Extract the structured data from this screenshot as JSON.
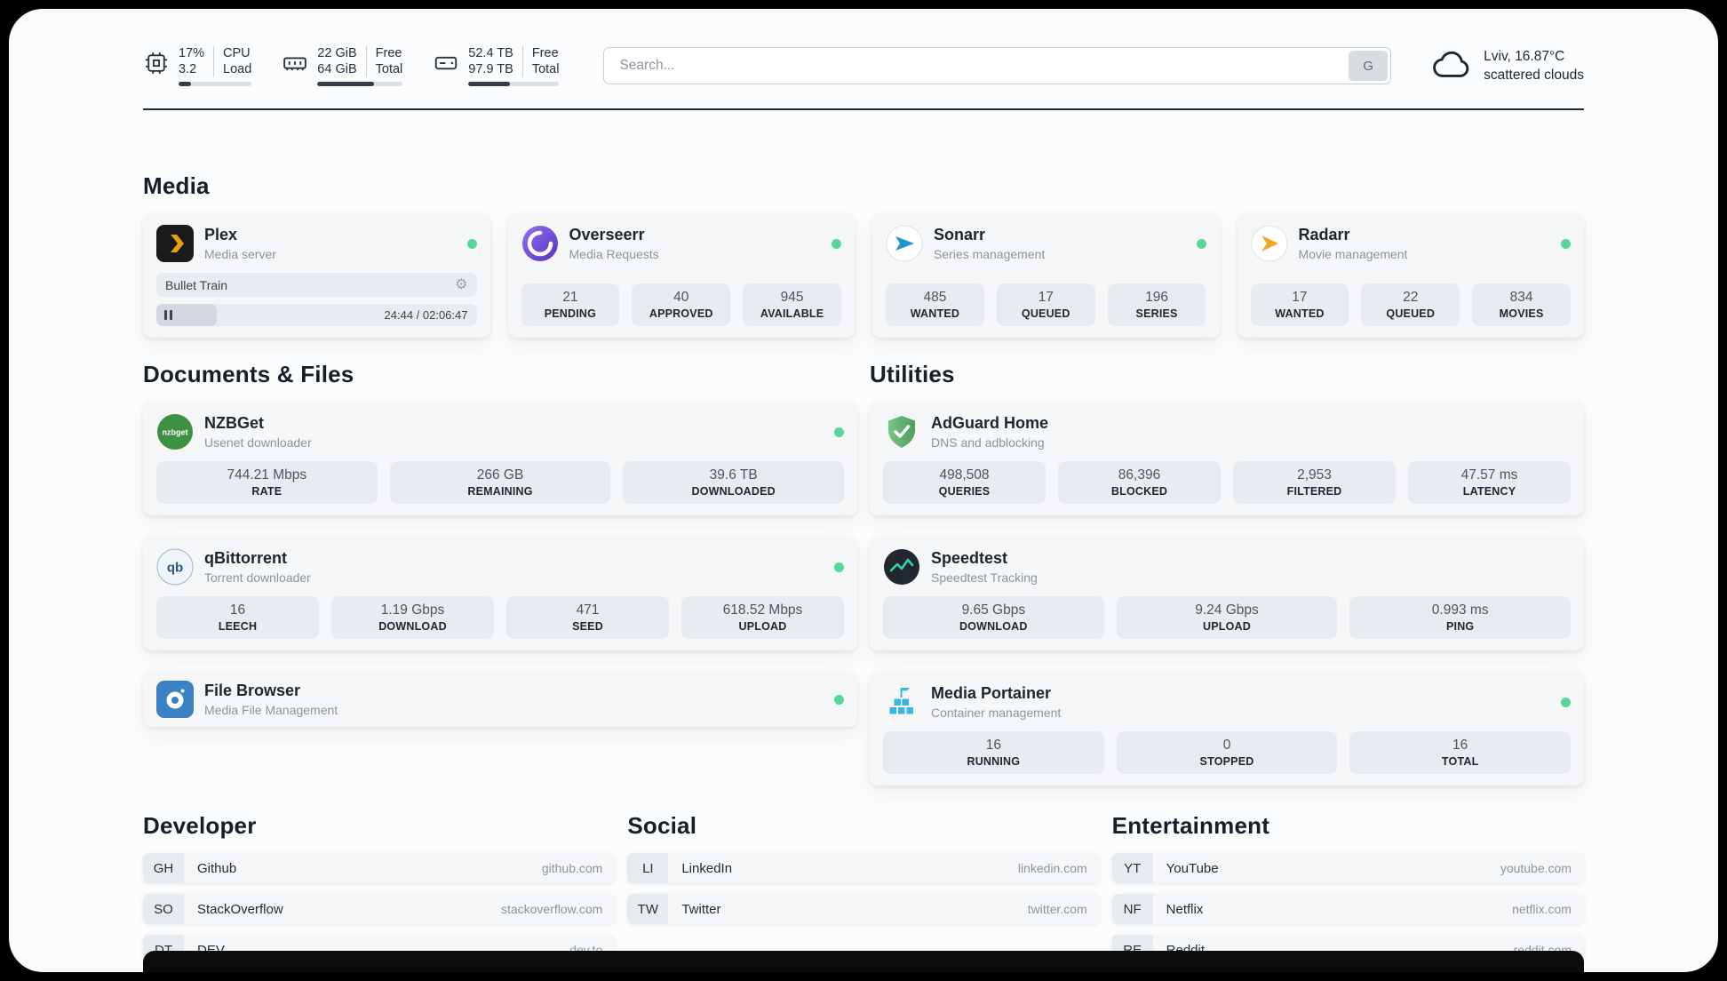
{
  "topbar": {
    "cpu": {
      "value1": "17%",
      "value2": "3.2",
      "label1": "CPU",
      "label2": "Load",
      "progress": 17
    },
    "ram": {
      "value1": "22 GiB",
      "value2": "64 GiB",
      "label1": "Free",
      "label2": "Total",
      "progress": 66
    },
    "disk": {
      "value1": "52.4 TB",
      "value2": "97.9 TB",
      "label1": "Free",
      "label2": "Total",
      "progress": 46
    },
    "search": {
      "placeholder": "Search...",
      "button_label": "G"
    },
    "weather": {
      "location": "Lviv, 16.87°C",
      "condition": "scattered clouds"
    }
  },
  "media": {
    "title": "Media",
    "plex": {
      "name": "Plex",
      "subtitle": "Media server",
      "now_playing": "Bullet Train",
      "time": "24:44 / 02:06:47",
      "progress": 19
    },
    "overseerr": {
      "name": "Overseerr",
      "subtitle": "Media Requests",
      "stats": [
        {
          "value": "21",
          "label": "PENDING"
        },
        {
          "value": "40",
          "label": "APPROVED"
        },
        {
          "value": "945",
          "label": "AVAILABLE"
        }
      ]
    },
    "sonarr": {
      "name": "Sonarr",
      "subtitle": "Series management",
      "stats": [
        {
          "value": "485",
          "label": "WANTED"
        },
        {
          "value": "17",
          "label": "QUEUED"
        },
        {
          "value": "196",
          "label": "SERIES"
        }
      ]
    },
    "radarr": {
      "name": "Radarr",
      "subtitle": "Movie management",
      "stats": [
        {
          "value": "17",
          "label": "WANTED"
        },
        {
          "value": "22",
          "label": "QUEUED"
        },
        {
          "value": "834",
          "label": "MOVIES"
        }
      ]
    }
  },
  "documents": {
    "title": "Documents & Files",
    "nzbget": {
      "name": "NZBGet",
      "subtitle": "Usenet downloader",
      "icon_label": "nzbget",
      "stats": [
        {
          "value": "744.21 Mbps",
          "label": "RATE"
        },
        {
          "value": "266 GB",
          "label": "REMAINING"
        },
        {
          "value": "39.6 TB",
          "label": "DOWNLOADED"
        }
      ]
    },
    "qbittorrent": {
      "name": "qBittorrent",
      "subtitle": "Torrent downloader",
      "icon_label": "qb",
      "stats": [
        {
          "value": "16",
          "label": "LEECH"
        },
        {
          "value": "1.19 Gbps",
          "label": "DOWNLOAD"
        },
        {
          "value": "471",
          "label": "SEED"
        },
        {
          "value": "618.52 Mbps",
          "label": "UPLOAD"
        }
      ]
    },
    "filebrowser": {
      "name": "File Browser",
      "subtitle": "Media File Management"
    }
  },
  "utilities": {
    "title": "Utilities",
    "adguard": {
      "name": "AdGuard Home",
      "subtitle": "DNS and adblocking",
      "stats": [
        {
          "value": "498,508",
          "label": "QUERIES"
        },
        {
          "value": "86,396",
          "label": "BLOCKED"
        },
        {
          "value": "2,953",
          "label": "FILTERED"
        },
        {
          "value": "47.57 ms",
          "label": "LATENCY"
        }
      ]
    },
    "speedtest": {
      "name": "Speedtest",
      "subtitle": "Speedtest Tracking",
      "stats": [
        {
          "value": "9.65 Gbps",
          "label": "DOWNLOAD"
        },
        {
          "value": "9.24 Gbps",
          "label": "UPLOAD"
        },
        {
          "value": "0.993 ms",
          "label": "PING"
        }
      ]
    },
    "portainer": {
      "name": "Media Portainer",
      "subtitle": "Container management",
      "stats": [
        {
          "value": "16",
          "label": "RUNNING"
        },
        {
          "value": "0",
          "label": "STOPPED"
        },
        {
          "value": "16",
          "label": "TOTAL"
        }
      ]
    }
  },
  "bookmarks": {
    "developer": {
      "title": "Developer",
      "items": [
        {
          "abbr": "GH",
          "name": "Github",
          "url": "github.com"
        },
        {
          "abbr": "SO",
          "name": "StackOverflow",
          "url": "stackoverflow.com"
        },
        {
          "abbr": "DT",
          "name": "DEV",
          "url": "dev.to"
        }
      ]
    },
    "social": {
      "title": "Social",
      "items": [
        {
          "abbr": "LI",
          "name": "LinkedIn",
          "url": "linkedin.com"
        },
        {
          "abbr": "TW",
          "name": "Twitter",
          "url": "twitter.com"
        }
      ]
    },
    "entertainment": {
      "title": "Entertainment",
      "items": [
        {
          "abbr": "YT",
          "name": "YouTube",
          "url": "youtube.com"
        },
        {
          "abbr": "NF",
          "name": "Netflix",
          "url": "netflix.com"
        },
        {
          "abbr": "RE",
          "name": "Reddit",
          "url": "reddit.com"
        }
      ]
    }
  },
  "icons": {
    "gear": "⚙"
  },
  "colors": {
    "status_online": "#57d795",
    "accent_dark": "#242a31"
  }
}
